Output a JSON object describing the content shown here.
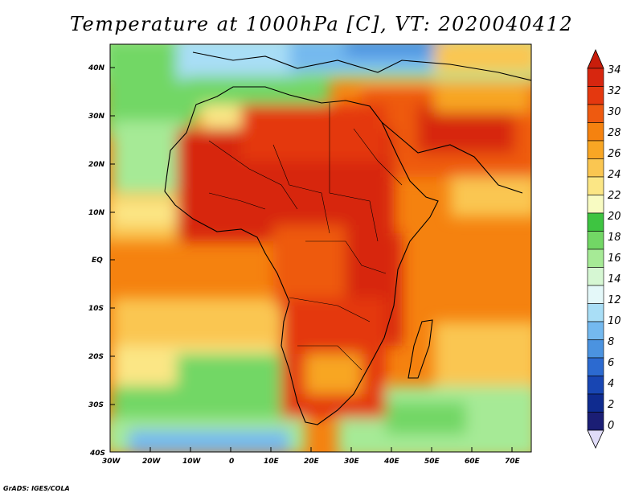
{
  "title": "Temperature at 1000hPa [C], VT: 2020040412",
  "credit": "GrADS: IGES/COLA",
  "map": {
    "lon_ticks": [
      "30W",
      "20W",
      "10W",
      "0",
      "10E",
      "20E",
      "30E",
      "40E",
      "50E",
      "60E",
      "70E"
    ],
    "lat_ticks": [
      "40N",
      "30N",
      "20N",
      "10N",
      "EQ",
      "10S",
      "20S",
      "30S",
      "40S"
    ],
    "lon_range": [
      -30,
      75
    ],
    "lat_range": [
      -40,
      45
    ]
  },
  "colorbar": {
    "labels": [
      "34",
      "32",
      "30",
      "28",
      "26",
      "24",
      "22",
      "20",
      "18",
      "16",
      "14",
      "12",
      "10",
      "8",
      "6",
      "4",
      "2",
      "0"
    ],
    "colors": [
      "#d7260f",
      "#e4380f",
      "#ee5a10",
      "#f5820f",
      "#f8a624",
      "#fac651",
      "#fbe685",
      "#f8fbc2",
      "#3ec441",
      "#72d765",
      "#a6ea96",
      "#d6f7d3",
      "#e4f8f9",
      "#a9def6",
      "#74b9ef",
      "#4b93e0",
      "#2c6ad0",
      "#1846b3",
      "#0f2b8f",
      "#1b1e75"
    ],
    "top_arrow_color": "#c81d0b",
    "bottom_arrow_color": "#e0dcf8"
  }
}
